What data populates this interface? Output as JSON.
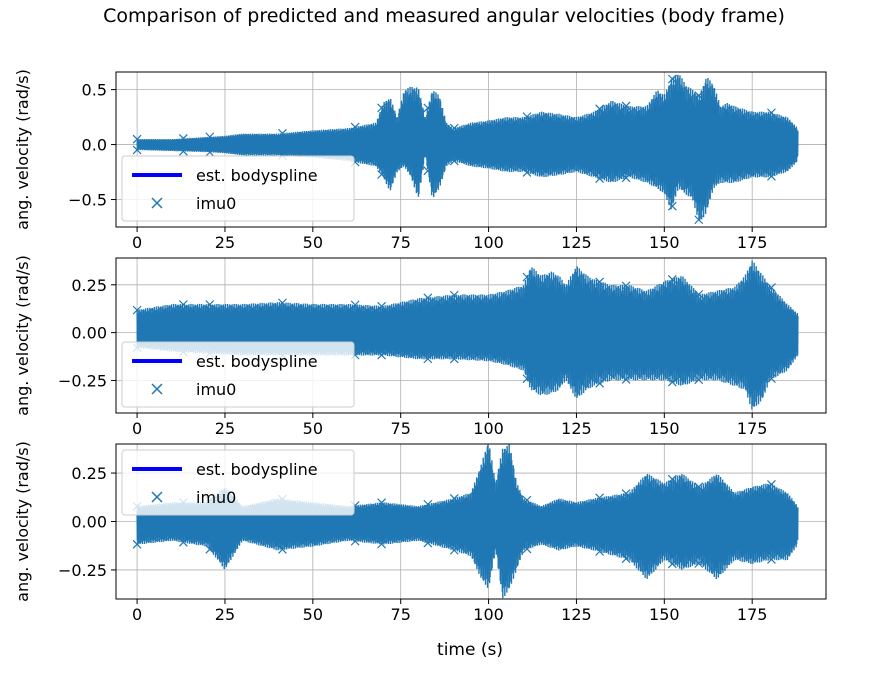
{
  "figure": {
    "title": "Comparison of predicted and measured angular velocities (body frame)",
    "xlabel": "time (s)"
  },
  "colors": {
    "background": "#ffffff",
    "grid": "#b0b0b0",
    "axes": "#000000",
    "imu_series": "#1f77b4",
    "spline_series": "#0000ff",
    "legend_border": "#cccccc"
  },
  "chart_data": [
    {
      "type": "line",
      "ylabel": "ang. velocity (rad/s)",
      "xlim": [
        -6,
        196
      ],
      "ylim": [
        -0.75,
        0.66
      ],
      "grid": true,
      "legend_position": "lower-left",
      "x_ticks": [
        0,
        25,
        50,
        75,
        100,
        125,
        150,
        175
      ],
      "x_tick_labels": [
        "0",
        "25",
        "50",
        "75",
        "100",
        "125",
        "150",
        "175"
      ],
      "y_ticks": [
        -0.5,
        0.0,
        0.5
      ],
      "y_tick_labels": [
        "−0.5",
        "0.0",
        "0.5"
      ],
      "series": [
        {
          "name": "est. bodyspline",
          "style": "line",
          "color": "#0000ff"
        },
        {
          "name": "imu0",
          "style": "marker-x",
          "color": "#1f77b4",
          "envelope": {
            "t": [
              0,
              10,
              20,
              25,
              30,
              40,
              50,
              60,
              68,
              70,
              72,
              74,
              76,
              78,
              80,
              82,
              84,
              86,
              88,
              90,
              95,
              100,
              105,
              110,
              115,
              120,
              125,
              130,
              135,
              140,
              145,
              148,
              150,
              152,
              154,
              156,
              158,
              160,
              162,
              164,
              166,
              168,
              170,
              175,
              180,
              185,
              188
            ],
            "upper": [
              0.05,
              0.05,
              0.07,
              0.08,
              0.1,
              0.1,
              0.13,
              0.15,
              0.2,
              0.38,
              0.43,
              0.25,
              0.5,
              0.53,
              0.52,
              0.25,
              0.5,
              0.45,
              0.2,
              0.15,
              0.2,
              0.22,
              0.25,
              0.25,
              0.3,
              0.28,
              0.25,
              0.3,
              0.4,
              0.35,
              0.35,
              0.5,
              0.45,
              0.6,
              0.66,
              0.55,
              0.5,
              0.45,
              0.62,
              0.55,
              0.35,
              0.38,
              0.35,
              0.3,
              0.3,
              0.25,
              0.15
            ],
            "lower": [
              -0.05,
              -0.06,
              -0.07,
              -0.08,
              -0.1,
              -0.1,
              -0.12,
              -0.15,
              -0.2,
              -0.3,
              -0.43,
              -0.25,
              -0.2,
              -0.3,
              -0.5,
              -0.1,
              -0.5,
              -0.4,
              -0.2,
              -0.15,
              -0.2,
              -0.22,
              -0.25,
              -0.25,
              -0.3,
              -0.28,
              -0.25,
              -0.3,
              -0.35,
              -0.3,
              -0.35,
              -0.4,
              -0.45,
              -0.6,
              -0.4,
              -0.45,
              -0.5,
              -0.72,
              -0.62,
              -0.4,
              -0.35,
              -0.35,
              -0.35,
              -0.3,
              -0.3,
              -0.25,
              -0.15
            ]
          }
        }
      ]
    },
    {
      "type": "line",
      "ylabel": "ang. velocity (rad/s)",
      "xlim": [
        -6,
        196
      ],
      "ylim": [
        -0.42,
        0.39
      ],
      "grid": true,
      "legend_position": "lower-left",
      "x_ticks": [
        0,
        25,
        50,
        75,
        100,
        125,
        150,
        175
      ],
      "x_tick_labels": [
        "0",
        "25",
        "50",
        "75",
        "100",
        "125",
        "150",
        "175"
      ],
      "y_ticks": [
        -0.25,
        0.0,
        0.25
      ],
      "y_tick_labels": [
        "−0.25",
        "0.00",
        "0.25"
      ],
      "series": [
        {
          "name": "est. bodyspline",
          "style": "line",
          "color": "#0000ff"
        },
        {
          "name": "imu0",
          "style": "marker-x",
          "color": "#1f77b4",
          "envelope": {
            "t": [
              0,
              10,
              20,
              30,
              40,
              50,
              60,
              70,
              80,
              90,
              100,
              105,
              110,
              112,
              115,
              118,
              120,
              122,
              125,
              128,
              130,
              135,
              140,
              145,
              150,
              155,
              160,
              165,
              170,
              173,
              175,
              178,
              180,
              185,
              188
            ],
            "upper": [
              0.12,
              0.15,
              0.15,
              0.15,
              0.16,
              0.15,
              0.15,
              0.14,
              0.18,
              0.2,
              0.2,
              0.22,
              0.25,
              0.35,
              0.3,
              0.32,
              0.3,
              0.25,
              0.35,
              0.3,
              0.28,
              0.25,
              0.25,
              0.22,
              0.27,
              0.3,
              0.2,
              0.22,
              0.24,
              0.3,
              0.38,
              0.3,
              0.25,
              0.15,
              0.1
            ],
            "lower": [
              -0.08,
              -0.1,
              -0.11,
              -0.12,
              -0.12,
              -0.12,
              -0.12,
              -0.12,
              -0.14,
              -0.14,
              -0.15,
              -0.17,
              -0.2,
              -0.3,
              -0.33,
              -0.32,
              -0.3,
              -0.25,
              -0.35,
              -0.3,
              -0.28,
              -0.25,
              -0.25,
              -0.25,
              -0.25,
              -0.28,
              -0.25,
              -0.25,
              -0.28,
              -0.3,
              -0.41,
              -0.35,
              -0.25,
              -0.2,
              -0.12
            ]
          }
        }
      ]
    },
    {
      "type": "line",
      "ylabel": "ang. velocity (rad/s)",
      "xlim": [
        -6,
        196
      ],
      "ylim": [
        -0.4,
        0.4
      ],
      "grid": true,
      "legend_position": "upper-left",
      "x_ticks": [
        0,
        25,
        50,
        75,
        100,
        125,
        150,
        175
      ],
      "x_tick_labels": [
        "0",
        "25",
        "50",
        "75",
        "100",
        "125",
        "150",
        "175"
      ],
      "y_ticks": [
        -0.25,
        0.0,
        0.25
      ],
      "y_tick_labels": [
        "−0.25",
        "0.00",
        "0.25"
      ],
      "series": [
        {
          "name": "est. bodyspline",
          "style": "line",
          "color": "#0000ff"
        },
        {
          "name": "imu0",
          "style": "marker-x",
          "color": "#1f77b4",
          "envelope": {
            "t": [
              0,
              10,
              20,
              25,
              30,
              40,
              50,
              60,
              70,
              80,
              90,
              95,
              98,
              100,
              102,
              104,
              106,
              108,
              110,
              115,
              120,
              125,
              130,
              140,
              145,
              150,
              155,
              160,
              165,
              170,
              175,
              180,
              185,
              188
            ],
            "upper": [
              0.08,
              0.1,
              0.1,
              0.18,
              0.08,
              0.12,
              0.1,
              0.08,
              0.1,
              0.08,
              0.12,
              0.15,
              0.3,
              0.42,
              0.2,
              0.38,
              0.4,
              0.2,
              0.12,
              0.08,
              0.12,
              0.1,
              0.12,
              0.15,
              0.25,
              0.2,
              0.25,
              0.18,
              0.25,
              0.15,
              0.18,
              0.2,
              0.15,
              0.08
            ],
            "lower": [
              -0.12,
              -0.1,
              -0.13,
              -0.25,
              -0.1,
              -0.15,
              -0.13,
              -0.1,
              -0.12,
              -0.1,
              -0.15,
              -0.18,
              -0.3,
              -0.35,
              -0.15,
              -0.4,
              -0.35,
              -0.25,
              -0.15,
              -0.12,
              -0.15,
              -0.13,
              -0.15,
              -0.2,
              -0.3,
              -0.2,
              -0.25,
              -0.22,
              -0.3,
              -0.2,
              -0.22,
              -0.2,
              -0.2,
              -0.12
            ]
          }
        }
      ]
    }
  ]
}
